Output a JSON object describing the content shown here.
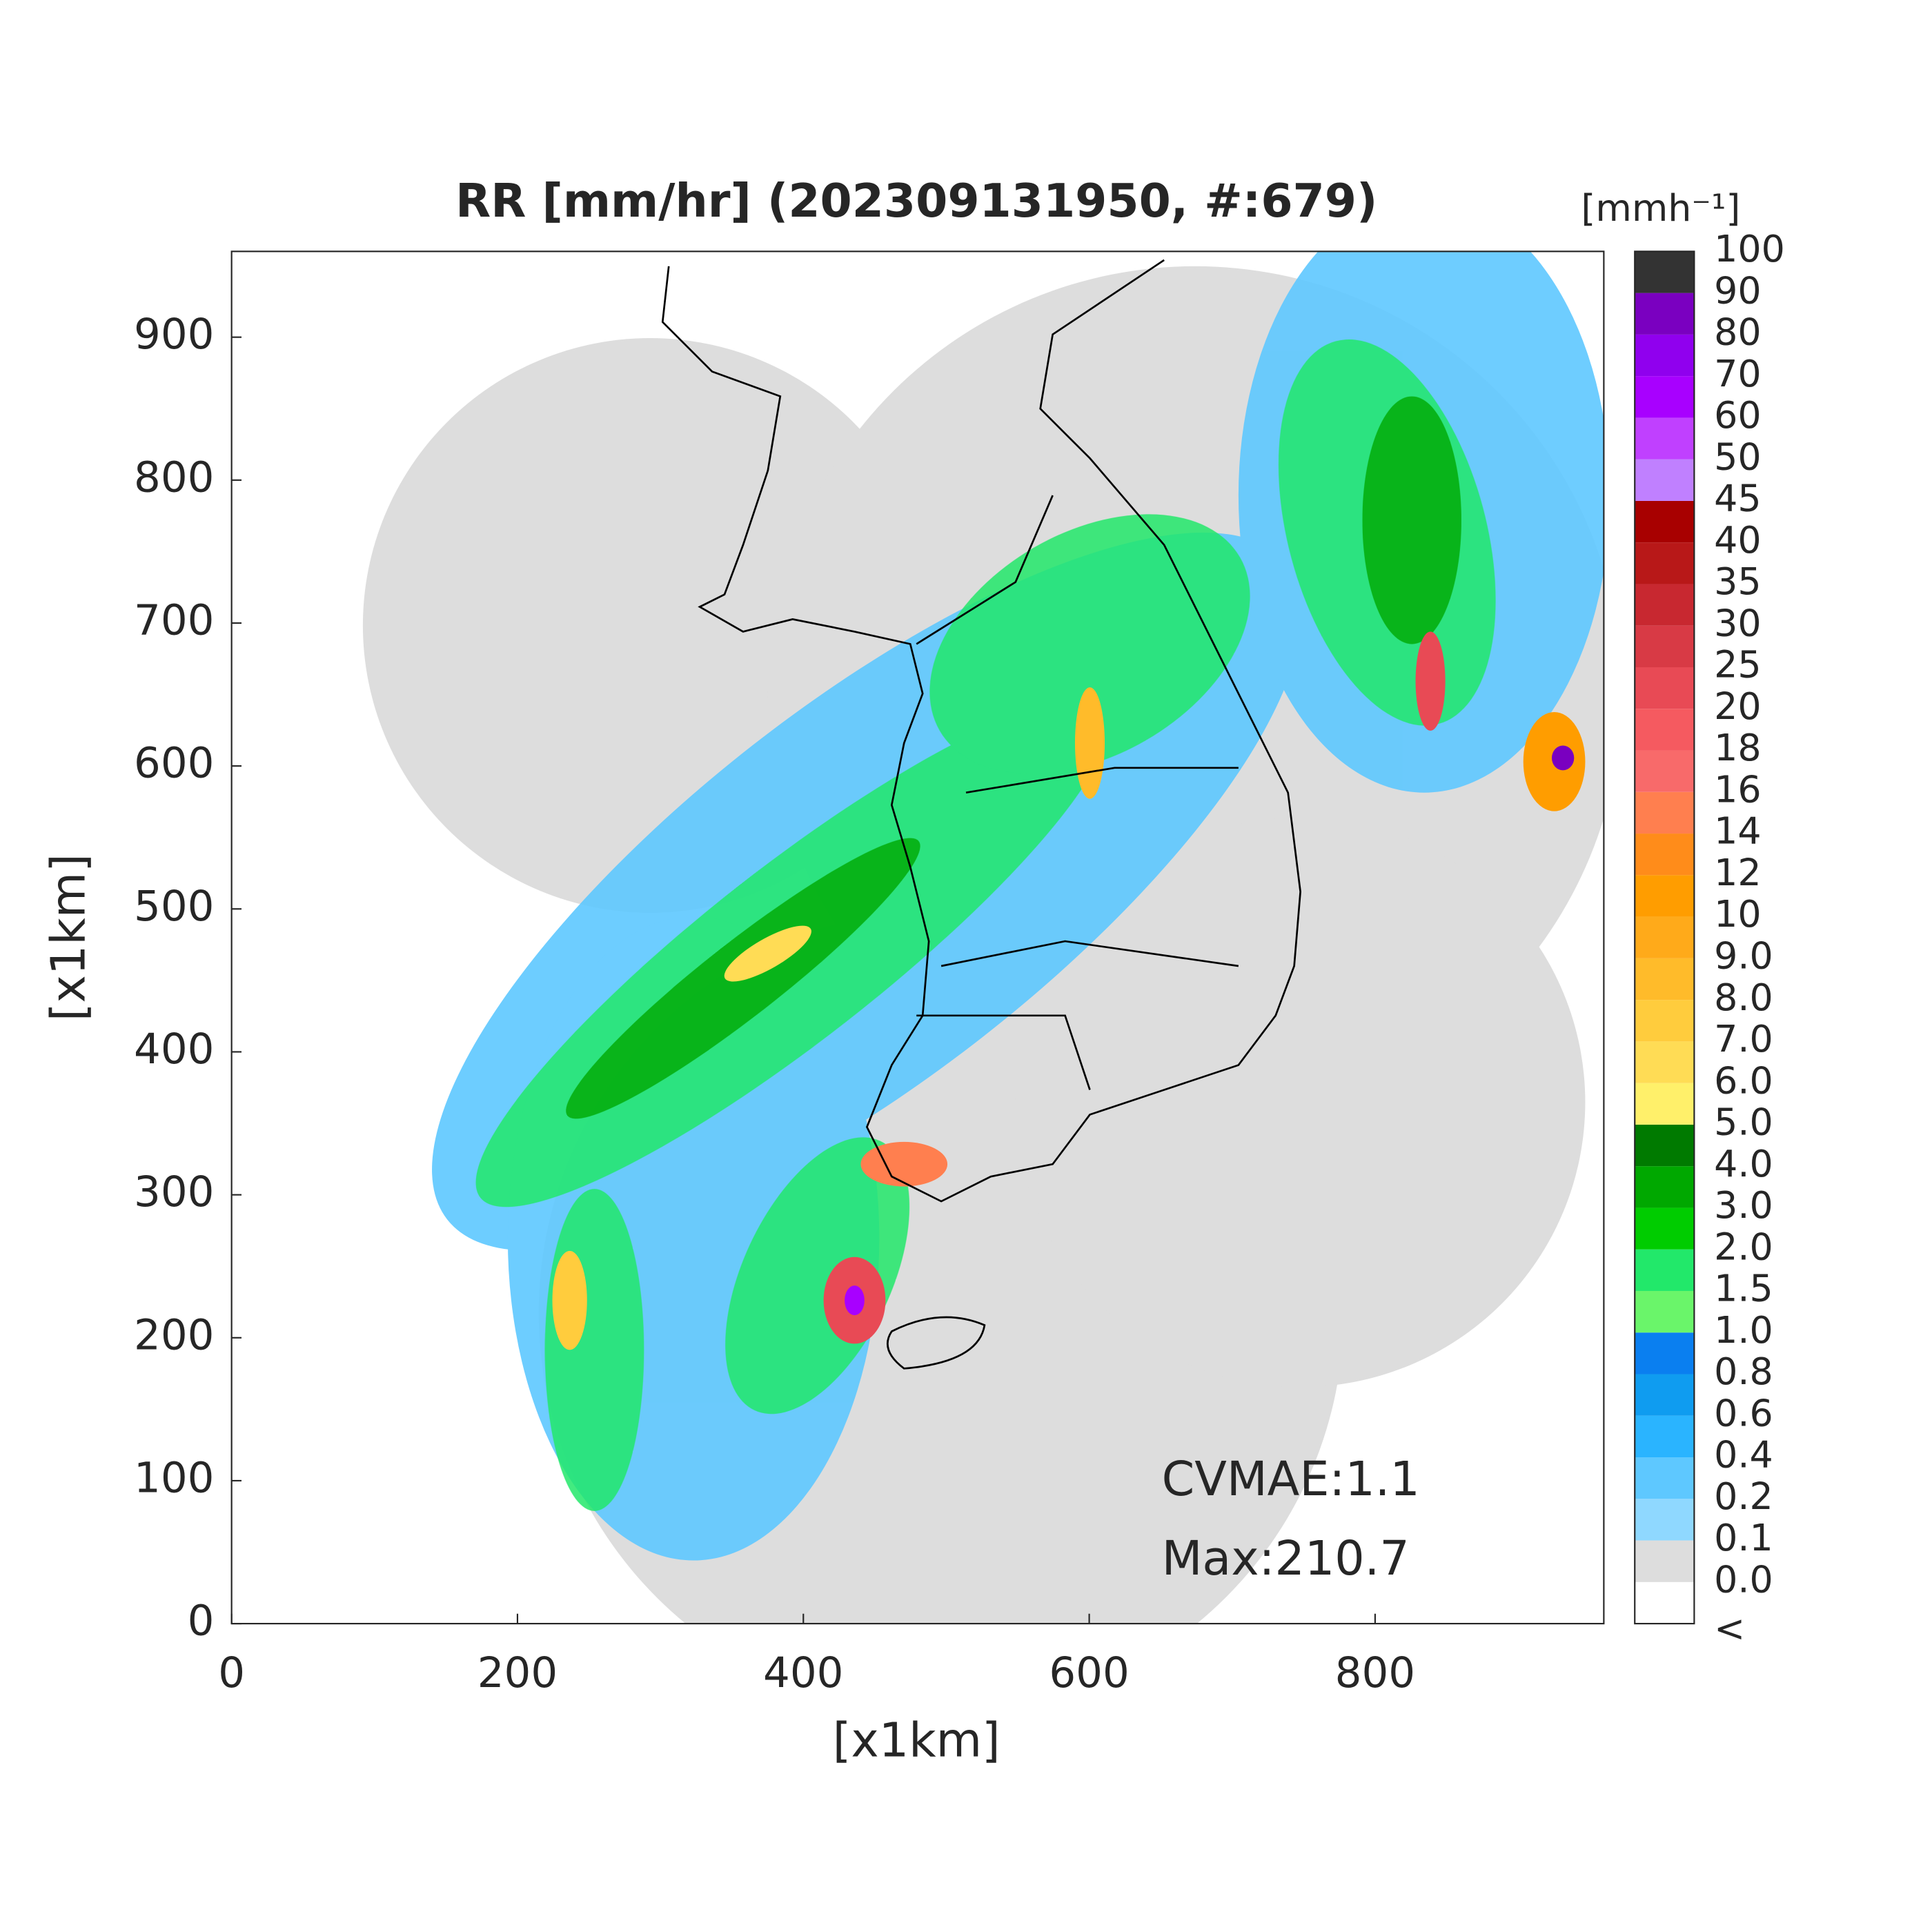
{
  "chart_data": {
    "type": "map",
    "title": "RR [mm/hr] (202309131950, #:679)",
    "xlabel": "[x1km]",
    "ylabel": "[x1km]",
    "xlim": [
      0,
      960
    ],
    "ylim": [
      0,
      960
    ],
    "xticks": [
      0,
      200,
      400,
      600,
      800
    ],
    "yticks": [
      0,
      100,
      200,
      300,
      400,
      500,
      600,
      700,
      800,
      900
    ],
    "annotations": [
      "CVMAE:1.1",
      "Max:210.7"
    ],
    "colorbar_title": "[mmh⁻¹]",
    "colorbar_labels": [
      "<",
      "0.0",
      "0.1",
      "0.2",
      "0.4",
      "0.6",
      "0.8",
      "1.0",
      "1.5",
      "2.0",
      "3.0",
      "4.0",
      "5.0",
      "6.0",
      "7.0",
      "8.0",
      "9.0",
      "10",
      "12",
      "14",
      "16",
      "18",
      "20",
      "25",
      "30",
      "35",
      "40",
      "45",
      "50",
      "60",
      "70",
      "80",
      "90",
      "100"
    ],
    "colorbar_colors": [
      "#ffffff",
      "#dddddd",
      "#8fd8ff",
      "#5ec8ff",
      "#2ab4ff",
      "#0f9cf0",
      "#0a7ff0",
      "#6af56a",
      "#22e86a",
      "#00cc00",
      "#00a800",
      "#007a00",
      "#fff06a",
      "#ffdc55",
      "#ffcc3d",
      "#ffbb2a",
      "#ffaa1a",
      "#ff9d00",
      "#ff8c1a",
      "#ff7f4f",
      "#f86a6a",
      "#f55a60",
      "#e84a55",
      "#d83a45",
      "#c82830",
      "#b81818",
      "#a80000",
      "#c080ff",
      "#c040ff",
      "#a800ff",
      "#9000ee",
      "#7a00c0",
      "#333333"
    ]
  }
}
